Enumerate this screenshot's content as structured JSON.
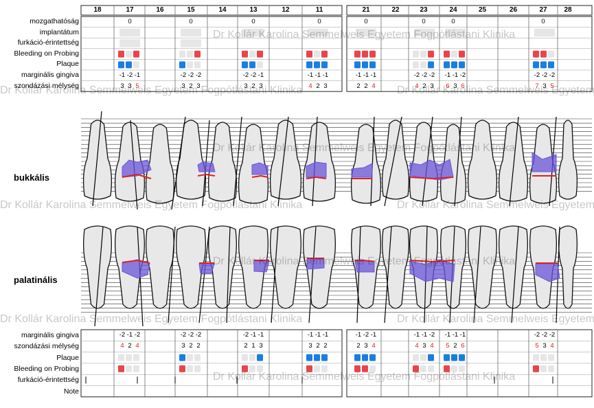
{
  "teeth": [
    "18",
    "17",
    "16",
    "15",
    "14",
    "13",
    "12",
    "11",
    "21",
    "22",
    "23",
    "24",
    "25",
    "26",
    "27",
    "28"
  ],
  "top_rows": [
    "mozgathatóság",
    "implantátum",
    "furkáció-érintettség",
    "Bleeding on Probing",
    "Plaque",
    "marginális gingiva",
    "szondázási mélység"
  ],
  "bottom_rows": [
    "marginális gingiva",
    "szondázási mélység",
    "Plaque",
    "Bleeding on Probing",
    "furkáció-érintettség",
    "Note"
  ],
  "sections": {
    "buccal": "bukkális",
    "palatal": "palatinális"
  },
  "watermark": "Dr Kollár Karolina Semmelweis Egyetem Fogpótlástani Klinika",
  "mobility": {
    "17": "0",
    "15": "0",
    "13": "0",
    "11": "0",
    "21": "0",
    "23": "0",
    "24": "0",
    "27": "0"
  },
  "top_gingiva": {
    "17": [
      "-1",
      "-2",
      "-1"
    ],
    "15": [
      "-2",
      "-2",
      "-2"
    ],
    "13": [
      "-2",
      "-2",
      "-1"
    ],
    "11": [
      "-1",
      "-1",
      "-1"
    ],
    "21": [
      "-1",
      "-1",
      "-1"
    ],
    "23": [
      "-2",
      "-2",
      "-2"
    ],
    "24": [
      "-1",
      "-1",
      "-2"
    ],
    "27": [
      "-2",
      "-2",
      "-2"
    ]
  },
  "top_depth": {
    "17": [
      "3",
      "3",
      "5"
    ],
    "15": [
      "3",
      "2",
      "3"
    ],
    "13": [
      "3",
      "2",
      "3"
    ],
    "11": [
      "4",
      "2",
      "3"
    ],
    "21": [
      "2",
      "2",
      "4"
    ],
    "23": [
      "4",
      "2",
      "3"
    ],
    "24": [
      "6",
      "3",
      "6"
    ],
    "27": [
      "7",
      "3",
      "5"
    ]
  },
  "bot_gingiva": {
    "17": [
      "-2",
      "-1",
      "-2"
    ],
    "15": [
      "-2",
      "-2",
      "-2"
    ],
    "13": [
      "-2",
      "-1",
      "-1"
    ],
    "11": [
      "-1",
      "-1",
      "-1"
    ],
    "21": [
      "-1",
      "-2",
      "-1"
    ],
    "23": [
      "-1",
      "-1",
      "-2"
    ],
    "24": [
      "-1",
      "-1",
      "-1"
    ],
    "27": [
      "-2",
      "-2",
      "-2"
    ]
  },
  "bot_depth": {
    "17": [
      "4",
      "2",
      "4"
    ],
    "15": [
      "3",
      "2",
      "2"
    ],
    "13": [
      "2",
      "1",
      "3"
    ],
    "11": [
      "3",
      "2",
      "2"
    ],
    "21": [
      "2",
      "3",
      "4"
    ],
    "23": [
      "4",
      "3",
      "4"
    ],
    "24": [
      "5",
      "2",
      "6"
    ],
    "27": [
      "5",
      "3",
      "4"
    ]
  },
  "colors": {
    "bleeding": "#e8454a",
    "plaque": "#1a7ee0",
    "empty": "#e6e6e6",
    "pocket": "#6a55d8",
    "gum": "#e02020"
  }
}
